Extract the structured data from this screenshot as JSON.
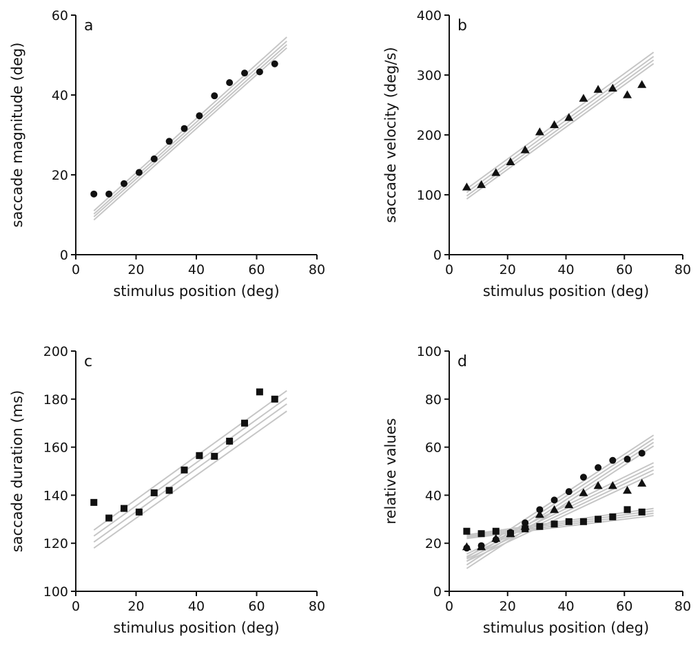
{
  "colors": {
    "axis": "#111111",
    "marker": "#111111",
    "fit_line": "#c6c6c6",
    "background": "#ffffff"
  },
  "chart_data": [
    {
      "type": "scatter",
      "panel_label": "a",
      "xlabel": "stimulus position (deg)",
      "ylabel": "saccade magnitude (deg)",
      "xlim": [
        0,
        80
      ],
      "ylim": [
        0,
        60
      ],
      "xticks": [
        "0",
        "20",
        "40",
        "60",
        "80"
      ],
      "yticks": [
        "0",
        "20",
        "40",
        "60"
      ],
      "grid": false,
      "series": [
        {
          "marker": "circle",
          "x": [
            6,
            11,
            16,
            21,
            26,
            31,
            36,
            41,
            46,
            51,
            56,
            61,
            66
          ],
          "y": [
            15.2,
            15.2,
            17.8,
            20.6,
            24.0,
            28.4,
            31.6,
            34.8,
            39.8,
            43.1,
            45.5,
            45.8,
            47.8
          ]
        }
      ],
      "fit_lines": [
        {
          "x": [
            6,
            70
          ],
          "y": [
            11.0,
            54.5
          ]
        },
        {
          "x": [
            6,
            70
          ],
          "y": [
            10.2,
            53.5
          ]
        },
        {
          "x": [
            6,
            70
          ],
          "y": [
            9.5,
            52.6
          ]
        },
        {
          "x": [
            6,
            70
          ],
          "y": [
            8.7,
            51.8
          ]
        }
      ]
    },
    {
      "type": "scatter",
      "panel_label": "b",
      "xlabel": "stimulus position (deg)",
      "ylabel": "saccade velocity (deg/s)",
      "xlim": [
        0,
        80
      ],
      "ylim": [
        0,
        400
      ],
      "xticks": [
        "0",
        "20",
        "40",
        "60",
        "80"
      ],
      "yticks": [
        "0",
        "100",
        "200",
        "300",
        "400"
      ],
      "grid": false,
      "series": [
        {
          "marker": "triangle",
          "x": [
            6,
            11,
            16,
            21,
            26,
            31,
            36,
            41,
            46,
            51,
            56,
            61,
            66
          ],
          "y": [
            113,
            117,
            137,
            155,
            175,
            205,
            217,
            229,
            261,
            276,
            278,
            267,
            284
          ]
        }
      ],
      "fit_lines": [
        {
          "x": [
            6,
            70
          ],
          "y": [
            110,
            338
          ]
        },
        {
          "x": [
            6,
            70
          ],
          "y": [
            104,
            331
          ]
        },
        {
          "x": [
            6,
            70
          ],
          "y": [
            98,
            325
          ]
        },
        {
          "x": [
            6,
            70
          ],
          "y": [
            93,
            319
          ]
        }
      ]
    },
    {
      "type": "scatter",
      "panel_label": "c",
      "xlabel": "stimulus position (deg)",
      "ylabel": "saccade duration (ms)",
      "xlim": [
        0,
        80
      ],
      "ylim": [
        100,
        200
      ],
      "xticks": [
        "0",
        "20",
        "40",
        "60",
        "80"
      ],
      "yticks": [
        "100",
        "120",
        "140",
        "160",
        "180",
        "200"
      ],
      "grid": false,
      "series": [
        {
          "marker": "square",
          "x": [
            6,
            11,
            16,
            21,
            26,
            31,
            36,
            41,
            46,
            51,
            56,
            61,
            66
          ],
          "y": [
            137,
            130.5,
            134.5,
            133,
            141,
            142,
            150.5,
            156.5,
            156.2,
            162.5,
            170,
            183,
            180
          ]
        }
      ],
      "fit_lines": [
        {
          "x": [
            6,
            70
          ],
          "y": [
            125.5,
            183.5
          ]
        },
        {
          "x": [
            6,
            70
          ],
          "y": [
            123,
            180.5
          ]
        },
        {
          "x": [
            6,
            70
          ],
          "y": [
            120.5,
            178
          ]
        },
        {
          "x": [
            6,
            70
          ],
          "y": [
            118,
            175
          ]
        }
      ]
    },
    {
      "type": "scatter",
      "panel_label": "d",
      "xlabel": "stimulus position (deg)",
      "ylabel": "relative values",
      "xlim": [
        0,
        80
      ],
      "ylim": [
        0,
        100
      ],
      "xticks": [
        "0",
        "20",
        "40",
        "60",
        "80"
      ],
      "yticks": [
        "0",
        "20",
        "40",
        "60",
        "80",
        "100"
      ],
      "grid": false,
      "series": [
        {
          "marker": "circle",
          "x": [
            6,
            11,
            16,
            21,
            26,
            31,
            36,
            41,
            46,
            51,
            56,
            61,
            66
          ],
          "y": [
            18,
            19,
            21.5,
            24.5,
            28.5,
            34,
            38,
            41.5,
            47.5,
            51.5,
            54.5,
            55,
            57.5
          ]
        },
        {
          "marker": "triangle",
          "x": [
            6,
            11,
            16,
            21,
            26,
            31,
            36,
            41,
            46,
            51,
            56,
            61,
            66
          ],
          "y": [
            18.5,
            18.5,
            22,
            24,
            27,
            32,
            34,
            36,
            41,
            44,
            44,
            42,
            45
          ]
        },
        {
          "marker": "square",
          "x": [
            6,
            11,
            16,
            21,
            26,
            31,
            36,
            41,
            46,
            51,
            56,
            61,
            66
          ],
          "y": [
            25,
            24,
            25,
            24,
            26,
            27,
            28,
            29,
            29,
            30,
            31,
            34,
            33
          ]
        }
      ],
      "fit_lines": [
        {
          "x": [
            6,
            70
          ],
          "y": [
            14,
            65
          ]
        },
        {
          "x": [
            6,
            70
          ],
          "y": [
            12.5,
            63.5
          ]
        },
        {
          "x": [
            6,
            70
          ],
          "y": [
            11,
            62
          ]
        },
        {
          "x": [
            6,
            70
          ],
          "y": [
            9.5,
            60.5
          ]
        },
        {
          "x": [
            6,
            70
          ],
          "y": [
            15.5,
            53.5
          ]
        },
        {
          "x": [
            6,
            70
          ],
          "y": [
            14.5,
            52
          ]
        },
        {
          "x": [
            6,
            70
          ],
          "y": [
            13.5,
            50.5
          ]
        },
        {
          "x": [
            6,
            70
          ],
          "y": [
            12.5,
            49
          ]
        },
        {
          "x": [
            6,
            70
          ],
          "y": [
            23.5,
            34.5
          ]
        },
        {
          "x": [
            6,
            70
          ],
          "y": [
            23,
            33.5
          ]
        },
        {
          "x": [
            6,
            70
          ],
          "y": [
            22.5,
            32.5
          ]
        },
        {
          "x": [
            6,
            70
          ],
          "y": [
            22,
            31.5
          ]
        }
      ]
    }
  ]
}
